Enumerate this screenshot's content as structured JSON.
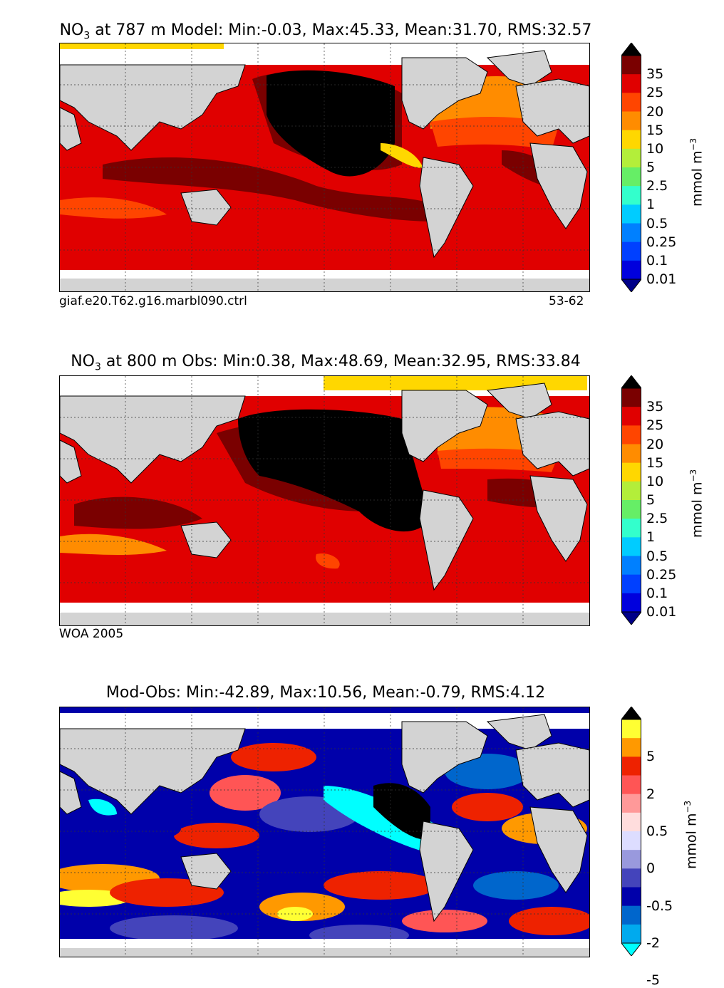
{
  "panels": [
    {
      "title_prefix": "NO",
      "title_sub": "3",
      "title_rest": " at 787 m Model: Min:-0.03, Max:45.33, Mean:31.70, RMS:32.57",
      "footnote_left": "giaf.e20.T62.g16.marbl090.ctrl",
      "footnote_right": "53-62"
    },
    {
      "title_prefix": "NO",
      "title_sub": "3",
      "title_rest": " at 800 m Obs: Min:0.38, Max:48.69, Mean:32.95, RMS:33.84",
      "footnote_left": "WOA 2005",
      "footnote_right": ""
    },
    {
      "title_prefix": "",
      "title_sub": "",
      "title_rest": "Mod-Obs: Min:-42.89, Max:10.56, Mean:-0.79, RMS:4.12",
      "footnote_left": "",
      "footnote_right": ""
    }
  ],
  "colorbar_abs": {
    "labels": [
      "35",
      "25",
      "20",
      "15",
      "10",
      "5",
      "2.5",
      "1",
      "0.5",
      "0.25",
      "0.1",
      "0.01"
    ],
    "colors": [
      "#000000",
      "#7a0000",
      "#e00000",
      "#ff4500",
      "#ff8c00",
      "#ffd700",
      "#b3ee3a",
      "#66ee66",
      "#33ffcc",
      "#00ccff",
      "#0080ff",
      "#0040ff",
      "#0000dd",
      "#000088"
    ],
    "unit_base": "mmol m",
    "unit_sup": "−3"
  },
  "colorbar_diff": {
    "labels": [
      "5",
      "2",
      "0.5",
      "0",
      "-0.5",
      "-2",
      "-5"
    ],
    "colors": [
      "#000000",
      "#ffff33",
      "#ff9900",
      "#ee2200",
      "#ff5555",
      "#ff9999",
      "#ffdddd",
      "#ddddff",
      "#9999dd",
      "#4444bb",
      "#0000aa",
      "#0066cc",
      "#00aaee",
      "#00ffff"
    ],
    "unit_base": "mmol m",
    "unit_sup": "−3"
  },
  "colors": {
    "land": "#d3d3d3",
    "missing": "#ffffff"
  }
}
